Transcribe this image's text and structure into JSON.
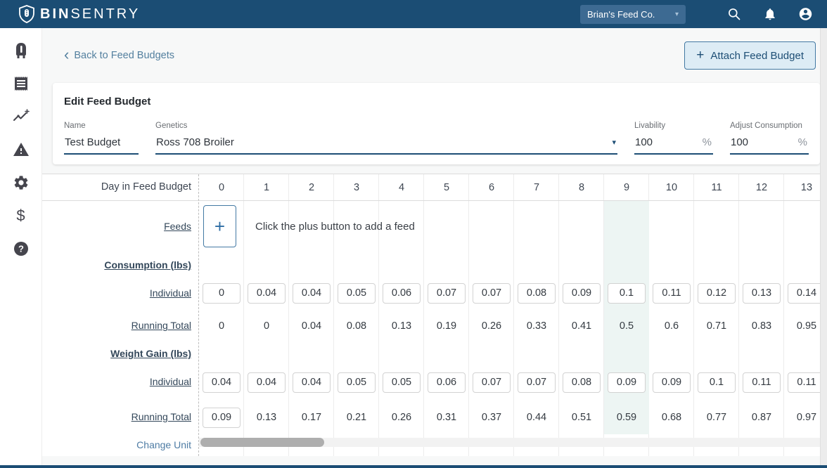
{
  "colors": {
    "navbar": "#1b4d74",
    "accent": "#4379a3",
    "link": "#4e7ca4",
    "highlight_column_bg": "#edf5f3"
  },
  "icons": {
    "plus": "+",
    "caret_down": "▾",
    "chevron_left": "‹",
    "names": [
      "shield-logo-icon",
      "search-icon",
      "bell-icon",
      "account-icon",
      "bin-icon",
      "receipt-icon",
      "trending-icon",
      "alert-icon",
      "settings-icon",
      "dollar-icon",
      "help-icon"
    ]
  },
  "navbar": {
    "brand_bold": "BIN",
    "brand_light": "SENTRY",
    "org_selector": "Brian's Feed Co."
  },
  "sidebar": {
    "items": [
      "bins",
      "orders",
      "analytics",
      "alerts",
      "settings",
      "billing",
      "help"
    ],
    "dollar_glyph": "$"
  },
  "page": {
    "back_link": "Back to Feed Budgets",
    "attach_button": "Attach Feed Budget"
  },
  "form": {
    "title": "Edit Feed Budget",
    "fields": [
      {
        "label": "Name",
        "value": "Test Budget"
      },
      {
        "label": "Genetics",
        "value": "Ross 708 Broiler"
      },
      {
        "label": "Livability",
        "value": "100",
        "suffix": "%"
      },
      {
        "label": "Adjust Consumption",
        "value": "100",
        "suffix": "%"
      }
    ]
  },
  "table": {
    "corner_label": "Day in Feed Budget",
    "days": [
      "0",
      "1",
      "2",
      "3",
      "4",
      "5",
      "6",
      "7",
      "8",
      "9",
      "10",
      "11",
      "12",
      "13"
    ],
    "highlight_column": 9,
    "feeds": {
      "label": "Feeds",
      "message": "Click the plus button to add a feed"
    },
    "consumption": {
      "section_label": "Consumption (lbs)",
      "individual_label": "Individual",
      "running_label": "Running Total",
      "individual": [
        "0",
        "0.04",
        "0.04",
        "0.05",
        "0.06",
        "0.07",
        "0.07",
        "0.08",
        "0.09",
        "0.1",
        "0.11",
        "0.12",
        "0.13",
        "0.14"
      ],
      "running": [
        "0",
        "0",
        "0.04",
        "0.08",
        "0.13",
        "0.19",
        "0.26",
        "0.33",
        "0.41",
        "0.5",
        "0.6",
        "0.71",
        "0.83",
        "0.95"
      ]
    },
    "weight_gain": {
      "section_label": "Weight Gain (lbs)",
      "individual_label": "Individual",
      "running_label": "Running Total",
      "individual": [
        "0.04",
        "0.04",
        "0.04",
        "0.05",
        "0.05",
        "0.06",
        "0.07",
        "0.07",
        "0.08",
        "0.09",
        "0.09",
        "0.1",
        "0.11",
        "0.11"
      ],
      "running": [
        "0.09",
        "0.13",
        "0.17",
        "0.21",
        "0.26",
        "0.31",
        "0.37",
        "0.44",
        "0.51",
        "0.59",
        "0.68",
        "0.77",
        "0.87",
        "0.97"
      ]
    },
    "change_unit_label": "Change Unit"
  }
}
